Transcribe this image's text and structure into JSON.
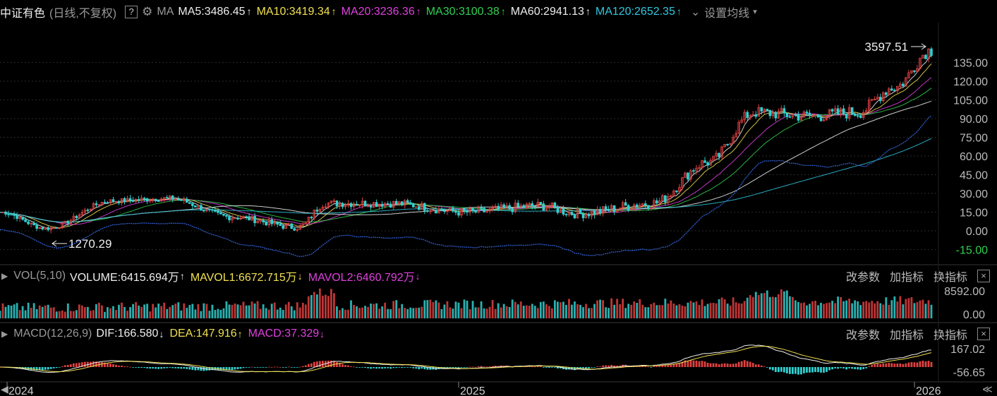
{
  "header": {
    "index_name": "中证有色",
    "mode": "(日线,不复权)",
    "help": "?",
    "ma_label": "MA",
    "ma": [
      {
        "text": "MA5:3486.45",
        "color": "#eeeeee",
        "dir": "↑"
      },
      {
        "text": "MA10:3419.34",
        "color": "#f0e050",
        "dir": "↑"
      },
      {
        "text": "MA20:3236.36",
        "color": "#e040e0",
        "dir": "↑"
      },
      {
        "text": "MA30:3100.38",
        "color": "#30d050",
        "dir": "↑"
      },
      {
        "text": "MA60:2941.13",
        "color": "#eeeeee",
        "dir": "↑"
      },
      {
        "text": "MA120:2652.35",
        "color": "#30c8e0",
        "dir": "↑"
      }
    ],
    "settings": "设置均线"
  },
  "volume_panel": {
    "name": "VOL(5,10)",
    "volume": "VOLUME:6415.694万",
    "volume_dir": "↑",
    "mavol1": "MAVOL1:6672.715万",
    "mavol1_dir": "↓",
    "mavol2": "MAVOL2:6460.792万",
    "mavol2_dir": "↓",
    "axis_top": "8592.00",
    "axis_bottom": "0.00"
  },
  "macd_panel": {
    "name": "MACD(12,26,9)",
    "dif": "DIF:166.580",
    "dif_dir": "↓",
    "dea": "DEA:147.916",
    "dea_dir": "↑",
    "macd": "MACD:37.329",
    "macd_dir": "↓",
    "axis_top": "167.02",
    "axis_bottom": "-56.65"
  },
  "actions": {
    "change_params": "改参数",
    "add_indicator": "加指标",
    "switch_indicator": "换指标",
    "close": "×"
  },
  "chart_data": {
    "type": "candlestick",
    "y_axis_ticks": [
      "135.00",
      "120.00",
      "105.00",
      "90.00",
      "75.00",
      "60.00",
      "45.00",
      "30.00",
      "15.00",
      "0.00",
      "-15.00"
    ],
    "x_labels": [
      "2024",
      "2025",
      "2026"
    ],
    "annotations": {
      "high": "3597.51",
      "low": "1270.29"
    },
    "key_points": [
      {
        "t": 0.0,
        "close": 15
      },
      {
        "t": 0.05,
        "close": 2
      },
      {
        "t": 0.12,
        "close": 24
      },
      {
        "t": 0.18,
        "close": 26
      },
      {
        "t": 0.25,
        "close": 11
      },
      {
        "t": 0.32,
        "close": 3
      },
      {
        "t": 0.35,
        "close": 22
      },
      {
        "t": 0.42,
        "close": 22
      },
      {
        "t": 0.5,
        "close": 15
      },
      {
        "t": 0.58,
        "close": 20
      },
      {
        "t": 0.62,
        "close": 14
      },
      {
        "t": 0.7,
        "close": 22
      },
      {
        "t": 0.76,
        "close": 55
      },
      {
        "t": 0.81,
        "close": 95
      },
      {
        "t": 0.87,
        "close": 92
      },
      {
        "t": 0.92,
        "close": 95
      },
      {
        "t": 0.96,
        "close": 115
      },
      {
        "t": 1.0,
        "close": 145
      }
    ]
  },
  "nav": {
    "left": "◀",
    "right": "≪"
  }
}
